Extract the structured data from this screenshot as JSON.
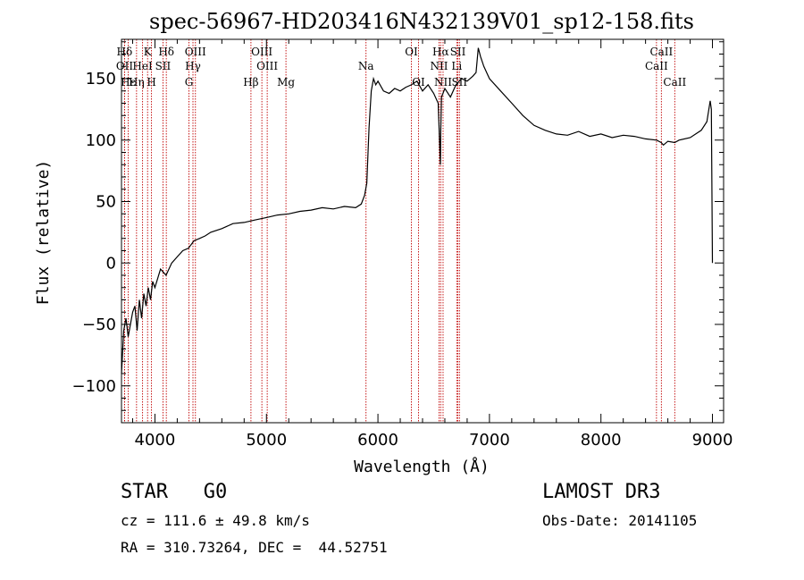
{
  "chart_data": {
    "type": "line",
    "title": "spec-56967-HD203416N432139V01_sp12-158.fits",
    "xlabel": "Wavelength (Å)",
    "ylabel": "Flux (relative)",
    "xlim": [
      3700,
      9100
    ],
    "ylim": [
      -130,
      182
    ],
    "xticks": [
      4000,
      5000,
      6000,
      7000,
      8000,
      9000
    ],
    "yticks": [
      -100,
      -50,
      0,
      50,
      100,
      150
    ],
    "series": [
      {
        "name": "flux",
        "x": [
          3700,
          3720,
          3740,
          3760,
          3780,
          3800,
          3820,
          3840,
          3860,
          3880,
          3900,
          3920,
          3940,
          3960,
          3980,
          4000,
          4050,
          4100,
          4150,
          4200,
          4250,
          4300,
          4350,
          4400,
          4450,
          4500,
          4600,
          4700,
          4800,
          4900,
          5000,
          5100,
          5200,
          5300,
          5400,
          5500,
          5600,
          5700,
          5800,
          5850,
          5880,
          5900,
          5920,
          5940,
          5960,
          5980,
          6000,
          6050,
          6100,
          6150,
          6200,
          6250,
          6300,
          6350,
          6400,
          6450,
          6500,
          6540,
          6560,
          6563,
          6570,
          6600,
          6650,
          6700,
          6750,
          6800,
          6850,
          6880,
          6900,
          6920,
          6950,
          7000,
          7100,
          7200,
          7300,
          7400,
          7500,
          7600,
          7700,
          7800,
          7900,
          8000,
          8100,
          8200,
          8300,
          8400,
          8500,
          8540,
          8560,
          8600,
          8662,
          8700,
          8800,
          8900,
          8950,
          8980,
          8990,
          9000
        ],
        "y": [
          -90,
          -55,
          -45,
          -60,
          -50,
          -40,
          -35,
          -55,
          -30,
          -45,
          -25,
          -35,
          -20,
          -30,
          -15,
          -20,
          -5,
          -10,
          0,
          5,
          10,
          12,
          18,
          20,
          22,
          25,
          28,
          32,
          33,
          35,
          37,
          39,
          40,
          42,
          43,
          45,
          44,
          46,
          45,
          48,
          55,
          65,
          110,
          140,
          150,
          145,
          148,
          140,
          138,
          142,
          140,
          143,
          145,
          148,
          140,
          145,
          138,
          130,
          80,
          105,
          135,
          142,
          135,
          145,
          150,
          148,
          152,
          155,
          175,
          168,
          160,
          150,
          140,
          130,
          120,
          112,
          108,
          105,
          104,
          107,
          103,
          105,
          102,
          104,
          103,
          101,
          100,
          98,
          96,
          99,
          98,
          100,
          102,
          108,
          115,
          132,
          125,
          0
        ]
      }
    ],
    "lines": [
      {
        "name": "Hδ",
        "wavelength": 3727,
        "row": 1
      },
      {
        "name": "OII",
        "wavelength": 3728,
        "row": 2
      },
      {
        "name": "Hε",
        "wavelength": 3760,
        "row": 3
      },
      {
        "name": "K",
        "wavelength": 3934,
        "row": 1
      },
      {
        "name": "HeI",
        "wavelength": 3889,
        "row": 2
      },
      {
        "name": "Hη",
        "wavelength": 3835,
        "row": 3
      },
      {
        "name": "SII",
        "wavelength": 4072,
        "row": 2
      },
      {
        "name": "H",
        "wavelength": 3969,
        "row": 3
      },
      {
        "name": "Hδ",
        "wavelength": 4102,
        "row": 1
      },
      {
        "name": "OIII",
        "wavelength": 4363,
        "row": 1
      },
      {
        "name": "Hγ",
        "wavelength": 4341,
        "row": 2
      },
      {
        "name": "G",
        "wavelength": 4305,
        "row": 3
      },
      {
        "name": "Hβ",
        "wavelength": 4861,
        "row": 3
      },
      {
        "name": "OIII",
        "wavelength": 4959,
        "row": 1
      },
      {
        "name": "OIII",
        "wavelength": 5007,
        "row": 2
      },
      {
        "name": "Mg",
        "wavelength": 5175,
        "row": 3
      },
      {
        "name": "Na",
        "wavelength": 5893,
        "row": 2
      },
      {
        "name": "OI",
        "wavelength": 6300,
        "row": 1
      },
      {
        "name": "OI",
        "wavelength": 6364,
        "row": 3
      },
      {
        "name": "Hα",
        "wavelength": 6563,
        "row": 1
      },
      {
        "name": "NII",
        "wavelength": 6548,
        "row": 2
      },
      {
        "name": "NII",
        "wavelength": 6584,
        "row": 3
      },
      {
        "name": "SII",
        "wavelength": 6717,
        "row": 1
      },
      {
        "name": "Li",
        "wavelength": 6707,
        "row": 2
      },
      {
        "name": "SII",
        "wavelength": 6731,
        "row": 3
      },
      {
        "name": "CaII",
        "wavelength": 8542,
        "row": 1
      },
      {
        "name": "CaII",
        "wavelength": 8498,
        "row": 2
      },
      {
        "name": "CaII",
        "wavelength": 8662,
        "row": 3
      }
    ]
  },
  "info": {
    "class": "STAR",
    "subclass": "G0",
    "survey": "LAMOST DR3",
    "cz": "cz = 111.6 ± 49.8 km/s",
    "obs_date": "Obs-Date: 20141105",
    "coords": "RA = 310.73264, DEC =  44.52751"
  },
  "colors": {
    "axis": "#000000",
    "spectrum": "#000000",
    "line_marker": "#c00000"
  }
}
